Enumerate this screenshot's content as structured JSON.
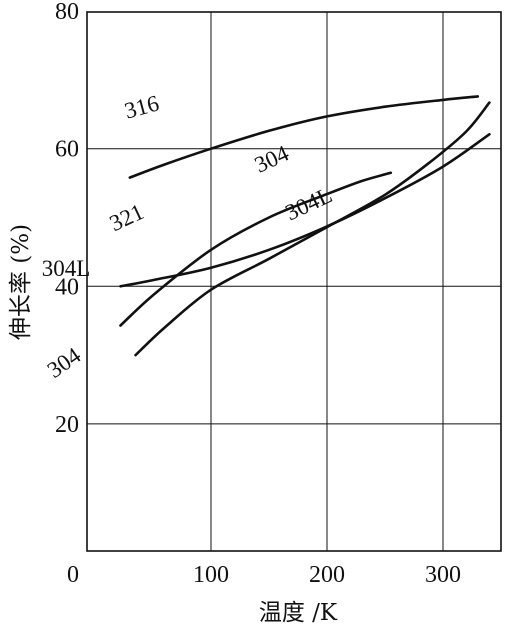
{
  "chart_data": {
    "type": "line",
    "xlabel": "温度 /K",
    "ylabel": "伸长率 (%)",
    "xlim": [
      0,
      350
    ],
    "ylim": [
      0,
      80
    ],
    "x_ticks": [
      "0",
      "100",
      "200",
      "300"
    ],
    "y_ticks": [
      "20",
      "40",
      "60",
      "80"
    ],
    "grid": true,
    "series": [
      {
        "name": "316",
        "x": [
          30,
          60,
          100,
          150,
          200,
          250,
          300,
          330
        ],
        "y": [
          55.8,
          57.7,
          60.0,
          62.6,
          64.7,
          66.1,
          67.1,
          67.6
        ]
      },
      {
        "name": "321",
        "x": [
          22,
          50,
          100,
          150,
          200,
          230,
          255
        ],
        "y": [
          34.3,
          38.7,
          45.3,
          50.0,
          53.4,
          55.3,
          56.5
        ]
      },
      {
        "name": "304L",
        "x": [
          22,
          50,
          100,
          150,
          200,
          250,
          300,
          340
        ],
        "y": [
          40.0,
          40.9,
          42.7,
          45.3,
          48.7,
          52.8,
          57.4,
          62.1
        ]
      },
      {
        "name": "304",
        "x": [
          35,
          60,
          100,
          150,
          200,
          250,
          290,
          320,
          340
        ],
        "y": [
          30.0,
          34.0,
          39.5,
          44.0,
          48.6,
          53.3,
          58.2,
          62.5,
          66.7
        ]
      }
    ],
    "labels": [
      {
        "text": "316",
        "x": 42,
        "y": 65.0,
        "rotate": -15
      },
      {
        "text": "321",
        "x": 30,
        "y": 49.0,
        "rotate": -25
      },
      {
        "text": "304L",
        "x": -25,
        "y": 41.5,
        "rotate": 0
      },
      {
        "text": "304",
        "x": -23,
        "y": 28.0,
        "rotate": -35
      },
      {
        "text": "304",
        "x": 155,
        "y": 57.5,
        "rotate": -25
      },
      {
        "text": "304L",
        "x": 187,
        "y": 51.0,
        "rotate": -25
      }
    ]
  }
}
